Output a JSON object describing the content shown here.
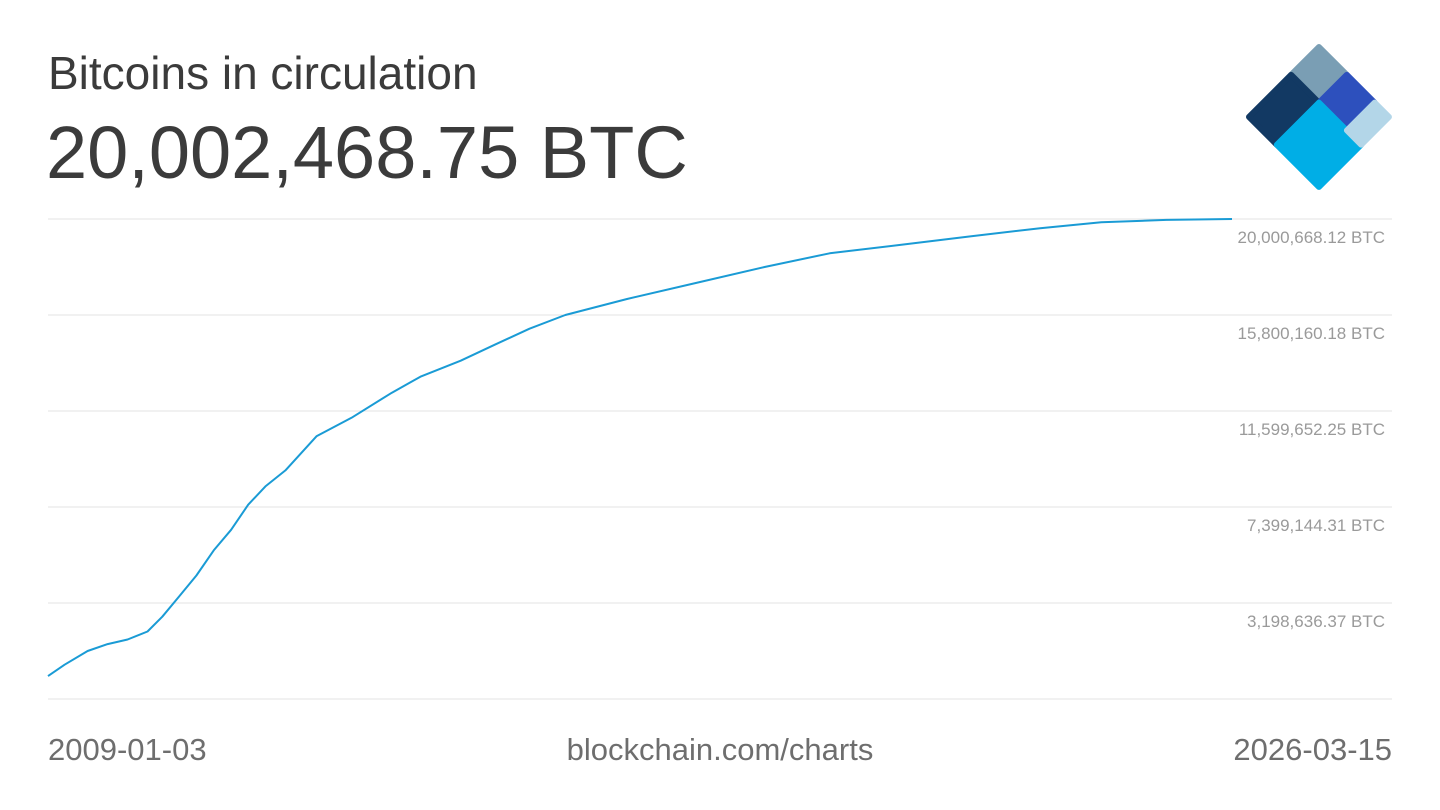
{
  "header": {
    "title": "Bitcoins in circulation",
    "current_value": "20,002,468.75 BTC"
  },
  "footer": {
    "start_date": "2009-01-03",
    "source": "blockchain.com/charts",
    "end_date": "2026-03-15"
  },
  "logo": {
    "icon": "blockchain-diamond-logo-icon",
    "colors": [
      "#7a9eb4",
      "#123963",
      "#2d50bd",
      "#00aee6",
      "#b3d6e8"
    ]
  },
  "chart_data": {
    "type": "line",
    "title": "Bitcoins in circulation",
    "ylabel": "",
    "xlabel": "",
    "x_range": [
      "2009-01-03",
      "2026-03-15"
    ],
    "y_ticks": [
      {
        "value": 20000668.12,
        "label": "20,000,668.12 BTC"
      },
      {
        "value": 15800160.18,
        "label": "15,800,160.18 BTC"
      },
      {
        "value": 11599652.25,
        "label": "11,599,652.25 BTC"
      },
      {
        "value": 7399144.31,
        "label": "7,399,144.31 BTC"
      },
      {
        "value": 3198636.37,
        "label": "3,198,636.37 BTC"
      }
    ],
    "ylim": [
      -1001871.57,
      20000668.12
    ],
    "line_color": "#1a9bd5",
    "grid_color": "#e3e3e3",
    "grid": true,
    "series": [
      {
        "name": "",
        "points": [
          [
            "2009-01-03",
            50
          ],
          [
            "2009-04-01",
            500000
          ],
          [
            "2009-08-01",
            1100000
          ],
          [
            "2009-11-15",
            1400000
          ],
          [
            "2010-03-01",
            1600000
          ],
          [
            "2010-06-15",
            1950000
          ],
          [
            "2010-09-01",
            2600000
          ],
          [
            "2010-12-01",
            3500000
          ],
          [
            "2011-03-01",
            4400000
          ],
          [
            "2011-06-01",
            5500000
          ],
          [
            "2011-09-01",
            6400000
          ],
          [
            "2011-12-01",
            7500000
          ],
          [
            "2012-03-01",
            8300000
          ],
          [
            "2012-06-15",
            9000000
          ],
          [
            "2012-11-28",
            10500000
          ],
          [
            "2013-06-01",
            11300000
          ],
          [
            "2014-01-01",
            12400000
          ],
          [
            "2014-06-01",
            13100000
          ],
          [
            "2015-01-01",
            13800000
          ],
          [
            "2015-07-01",
            14500000
          ],
          [
            "2016-01-01",
            15200000
          ],
          [
            "2016-07-09",
            15800000
          ],
          [
            "2017-06-01",
            16500000
          ],
          [
            "2018-06-01",
            17200000
          ],
          [
            "2019-06-01",
            17900000
          ],
          [
            "2020-05-11",
            18500000
          ],
          [
            "2021-06-01",
            18880000
          ],
          [
            "2022-06-01",
            19250000
          ],
          [
            "2023-06-01",
            19600000
          ],
          [
            "2024-04-20",
            19860000
          ],
          [
            "2025-04-01",
            19960000
          ],
          [
            "2026-03-15",
            20002468.75
          ]
        ]
      }
    ]
  }
}
